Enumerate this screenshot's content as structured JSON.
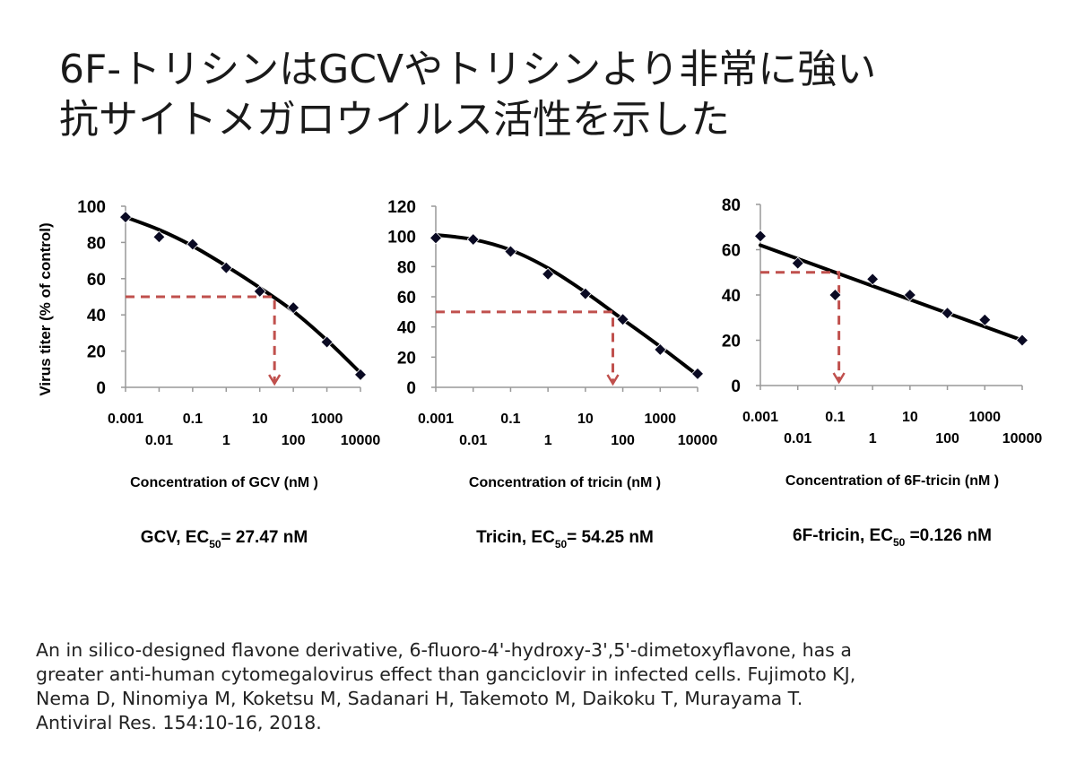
{
  "title": {
    "line1": "6F-トリシンはGCVやトリシンより非常に強い",
    "line2": "抗サイトメガロウイルス活性を示した"
  },
  "y_axis_label": "Virus titer (% of control)",
  "colors": {
    "curve": "#000000",
    "marker": "#0a0a23",
    "ec50_guide": "#c0504d"
  },
  "chart_data": [
    {
      "type": "line",
      "x_scale": "log",
      "xlabel": "Concentration of GCV (nM )",
      "ylabel": "Virus titer (% of control)",
      "ylim": [
        0,
        100
      ],
      "yticks": [
        0,
        20,
        40,
        60,
        80,
        100
      ],
      "xticks_upper": [
        "0.001",
        "0.1",
        "10",
        "1000"
      ],
      "xticks_lower": [
        "0.01",
        "1",
        "100",
        "10000"
      ],
      "xlim": [
        0.001,
        10000
      ],
      "points": {
        "x": [
          0.001,
          0.01,
          0.1,
          1,
          10,
          100,
          1000,
          10000
        ],
        "y": [
          94,
          83,
          79,
          66,
          53,
          44,
          25,
          7
        ]
      },
      "fit": {
        "x": [
          0.001,
          0.01,
          0.1,
          1,
          10,
          100,
          1000,
          10000
        ],
        "y": [
          94,
          87,
          78,
          67,
          55,
          42,
          26,
          8
        ]
      },
      "ec50_guide": {
        "x": 27.47,
        "y": 50
      },
      "ec50_label": {
        "name": "GCV",
        "pre": "EC",
        "sub": "50",
        "post": "= 27.47 nM"
      },
      "grid": false,
      "legend": "none"
    },
    {
      "type": "line",
      "x_scale": "log",
      "xlabel": "Concentration of tricin (nM )",
      "ylabel": "",
      "ylim": [
        0,
        120
      ],
      "yticks": [
        0,
        20,
        40,
        60,
        80,
        100,
        120
      ],
      "xticks_upper": [
        "0.001",
        "0.1",
        "10",
        "1000"
      ],
      "xticks_lower": [
        "0.01",
        "1",
        "100",
        "10000"
      ],
      "xlim": [
        0.001,
        10000
      ],
      "points": {
        "x": [
          0.001,
          0.01,
          0.1,
          1,
          10,
          100,
          1000,
          10000
        ],
        "y": [
          99,
          98,
          90,
          75,
          62,
          45,
          25,
          9
        ]
      },
      "fit": {
        "x": [
          0.001,
          0.01,
          0.1,
          1,
          10,
          100,
          1000,
          10000
        ],
        "y": [
          101,
          98,
          91,
          79,
          63,
          45,
          27,
          8
        ]
      },
      "ec50_guide": {
        "x": 54.25,
        "y": 50
      },
      "ec50_label": {
        "name": "Tricin",
        "pre": "EC",
        "sub": "50",
        "post": "= 54.25 nM"
      },
      "grid": false,
      "legend": "none"
    },
    {
      "type": "line",
      "x_scale": "log",
      "xlabel": "Concentration of 6F-tricin (nM )",
      "ylabel": "",
      "ylim": [
        0,
        80
      ],
      "yticks": [
        0,
        20,
        40,
        60,
        80
      ],
      "xticks_upper": [
        "0.001",
        "0.1",
        "10",
        "1000"
      ],
      "xticks_lower": [
        "0.01",
        "1",
        "100",
        "10000"
      ],
      "xlim": [
        0.001,
        10000
      ],
      "points": {
        "x": [
          0.001,
          0.01,
          0.1,
          1,
          10,
          100,
          1000,
          10000
        ],
        "y": [
          66,
          54,
          40,
          47,
          40,
          32,
          29,
          20
        ]
      },
      "fit": {
        "x": [
          0.001,
          10000
        ],
        "y": [
          62,
          20
        ]
      },
      "ec50_guide": {
        "x": 0.126,
        "y": 50
      },
      "ec50_label": {
        "name": "6F-tricin",
        "pre": "EC",
        "sub": "50",
        "post": " =0.126 nM"
      },
      "grid": false,
      "legend": "none"
    }
  ],
  "caption": "An in silico-designed flavone derivative, 6-fluoro-4'-hydroxy-3',5'-dimetoxyflavone, has a\ngreater anti-human cytomegalovirus effect than ganciclovir in infected cells. Fujimoto KJ,\nNema D, Ninomiya M, Koketsu M, Sadanari H, Takemoto M, Daikoku T, Murayama T.\nAntiviral Res. 154:10-16, 2018."
}
